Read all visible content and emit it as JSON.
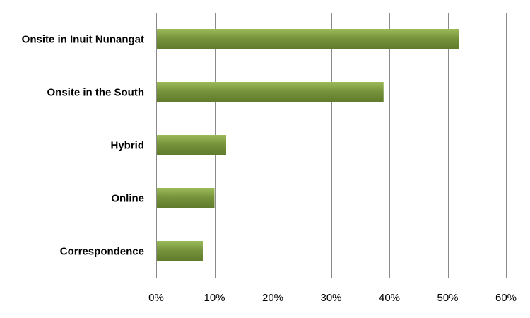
{
  "chart_data": {
    "type": "bar",
    "orientation": "horizontal",
    "title": "",
    "xlabel": "",
    "ylabel": "",
    "categories": [
      "Onsite in Inuit Nunangat",
      "Onsite in the South",
      "Hybrid",
      "Online",
      "Correspondence"
    ],
    "values": [
      52,
      39,
      12,
      10,
      8
    ],
    "value_unit": "%",
    "xlim": [
      0,
      60
    ],
    "x_ticks": [
      0,
      10,
      20,
      30,
      40,
      50,
      60
    ],
    "x_tick_labels": [
      "0%",
      "10%",
      "20%",
      "30%",
      "40%",
      "50%",
      "60%"
    ],
    "grid": "vertical",
    "legend": "none",
    "bar_color": "#77933C",
    "bar_color_light": "#9BBB59",
    "bar_color_dark": "#5E7A2C"
  }
}
